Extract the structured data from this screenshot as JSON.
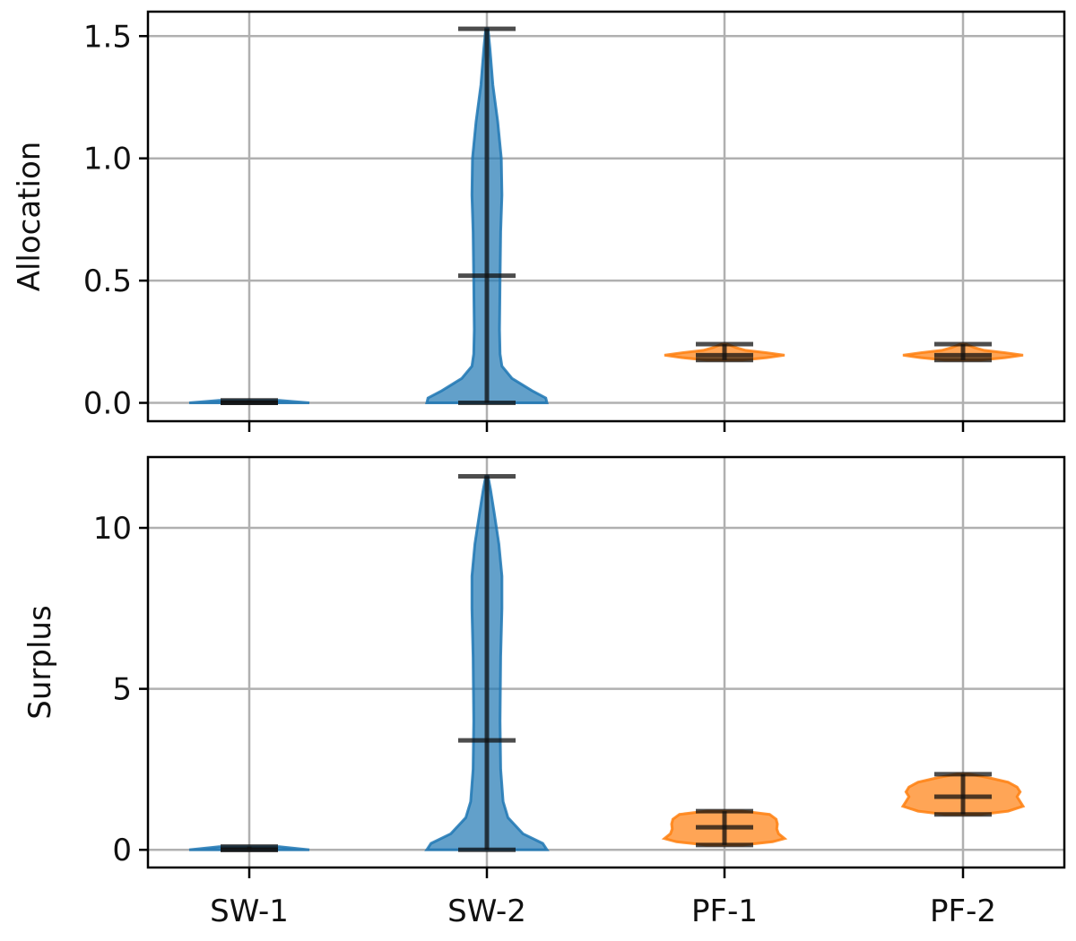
{
  "chart_data": [
    {
      "type": "violin",
      "ylabel": "Allocation",
      "xlabel": "",
      "categories": [
        "SW-1",
        "SW-2",
        "PF-1",
        "PF-2"
      ],
      "show_x_tick_labels": false,
      "ylim": [
        -0.075,
        1.6
      ],
      "yticks": [
        0.0,
        0.5,
        1.0,
        1.5
      ],
      "ytick_labels": [
        "0.0",
        "0.5",
        "1.0",
        "1.5"
      ],
      "grid": true,
      "violins": [
        {
          "category": "SW-1",
          "color": "#1f77b4",
          "min": 0.0,
          "median": 0.0,
          "max": 0.01,
          "density": [
            [
              0.0,
              1.0
            ],
            [
              0.01,
              0.5
            ]
          ]
        },
        {
          "category": "SW-2",
          "color": "#1f77b4",
          "min": 0.0,
          "median": 0.52,
          "max": 1.53,
          "density": [
            [
              0.0,
              1.0
            ],
            [
              0.02,
              0.98
            ],
            [
              0.05,
              0.75
            ],
            [
              0.1,
              0.42
            ],
            [
              0.15,
              0.25
            ],
            [
              0.2,
              0.22
            ],
            [
              0.3,
              0.21
            ],
            [
              0.5,
              0.22
            ],
            [
              0.7,
              0.23
            ],
            [
              0.85,
              0.25
            ],
            [
              1.0,
              0.24
            ],
            [
              1.15,
              0.18
            ],
            [
              1.3,
              0.1
            ],
            [
              1.45,
              0.05
            ],
            [
              1.53,
              0.02
            ]
          ]
        },
        {
          "category": "PF-1",
          "color": "#ff7f0e",
          "min": 0.175,
          "median": 0.195,
          "max": 0.24,
          "density": [
            [
              0.175,
              0.3
            ],
            [
              0.185,
              0.7
            ],
            [
              0.195,
              1.0
            ],
            [
              0.205,
              0.7
            ],
            [
              0.215,
              0.35
            ],
            [
              0.225,
              0.2
            ],
            [
              0.24,
              0.05
            ]
          ]
        },
        {
          "category": "PF-2",
          "color": "#ff7f0e",
          "min": 0.175,
          "median": 0.195,
          "max": 0.24,
          "density": [
            [
              0.175,
              0.3
            ],
            [
              0.185,
              0.7
            ],
            [
              0.195,
              1.0
            ],
            [
              0.205,
              0.7
            ],
            [
              0.215,
              0.35
            ],
            [
              0.225,
              0.2
            ],
            [
              0.24,
              0.05
            ]
          ]
        }
      ]
    },
    {
      "type": "violin",
      "ylabel": "Surplus",
      "xlabel": "",
      "categories": [
        "SW-1",
        "SW-2",
        "PF-1",
        "PF-2"
      ],
      "show_x_tick_labels": true,
      "ylim": [
        -0.55,
        12.2
      ],
      "yticks": [
        0,
        5,
        10
      ],
      "ytick_labels": [
        "0",
        "5",
        "10"
      ],
      "grid": true,
      "violins": [
        {
          "category": "SW-1",
          "color": "#1f77b4",
          "min": 0.0,
          "median": 0.0,
          "max": 0.1,
          "density": [
            [
              0.0,
              1.0
            ],
            [
              0.1,
              0.5
            ]
          ]
        },
        {
          "category": "SW-2",
          "color": "#1f77b4",
          "min": 0.0,
          "median": 3.4,
          "max": 11.6,
          "density": [
            [
              0.0,
              1.0
            ],
            [
              0.2,
              0.93
            ],
            [
              0.5,
              0.6
            ],
            [
              1.0,
              0.35
            ],
            [
              1.5,
              0.27
            ],
            [
              2.5,
              0.23
            ],
            [
              4.0,
              0.22
            ],
            [
              6.0,
              0.23
            ],
            [
              7.5,
              0.25
            ],
            [
              8.5,
              0.25
            ],
            [
              9.5,
              0.2
            ],
            [
              10.5,
              0.12
            ],
            [
              11.2,
              0.06
            ],
            [
              11.6,
              0.02
            ]
          ]
        },
        {
          "category": "PF-1",
          "color": "#ff7f0e",
          "min": 0.15,
          "median": 0.7,
          "max": 1.2,
          "density": [
            [
              0.15,
              0.3
            ],
            [
              0.25,
              0.8
            ],
            [
              0.35,
              1.0
            ],
            [
              0.5,
              0.9
            ],
            [
              0.65,
              0.87
            ],
            [
              0.8,
              0.88
            ],
            [
              0.95,
              0.86
            ],
            [
              1.1,
              0.75
            ],
            [
              1.2,
              0.3
            ]
          ]
        },
        {
          "category": "PF-2",
          "color": "#ff7f0e",
          "min": 1.1,
          "median": 1.65,
          "max": 2.35,
          "density": [
            [
              1.1,
              0.3
            ],
            [
              1.2,
              0.75
            ],
            [
              1.35,
              1.0
            ],
            [
              1.5,
              0.95
            ],
            [
              1.65,
              0.9
            ],
            [
              1.8,
              0.95
            ],
            [
              1.95,
              0.9
            ],
            [
              2.1,
              0.75
            ],
            [
              2.25,
              0.4
            ],
            [
              2.35,
              0.1
            ]
          ]
        }
      ]
    }
  ]
}
